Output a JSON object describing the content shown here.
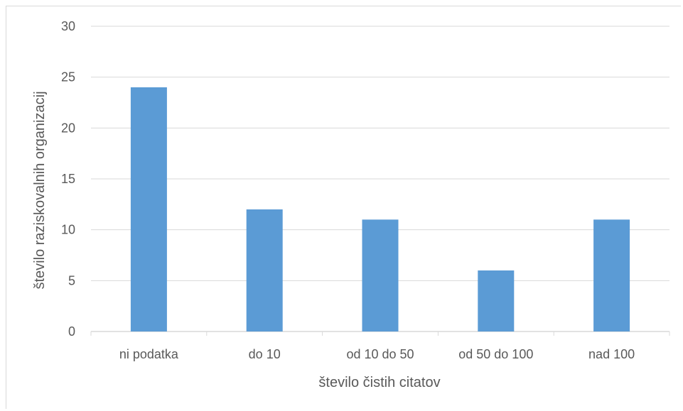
{
  "chart_data": {
    "type": "bar",
    "categories": [
      "ni podatka",
      "do 10",
      "od 10 do 50",
      "od 50 do 100",
      "nad 100"
    ],
    "values": [
      24,
      12,
      11,
      6,
      11
    ],
    "title": "",
    "xlabel": "število čistih citatov",
    "ylabel": "število raziskovalnih organizacij",
    "ylim": [
      0,
      30
    ],
    "yticks": [
      0,
      5,
      10,
      15,
      20,
      25,
      30
    ],
    "grid": true,
    "legend": "none",
    "bar_color": "#5b9bd5",
    "grid_color": "#d9d9d9"
  }
}
